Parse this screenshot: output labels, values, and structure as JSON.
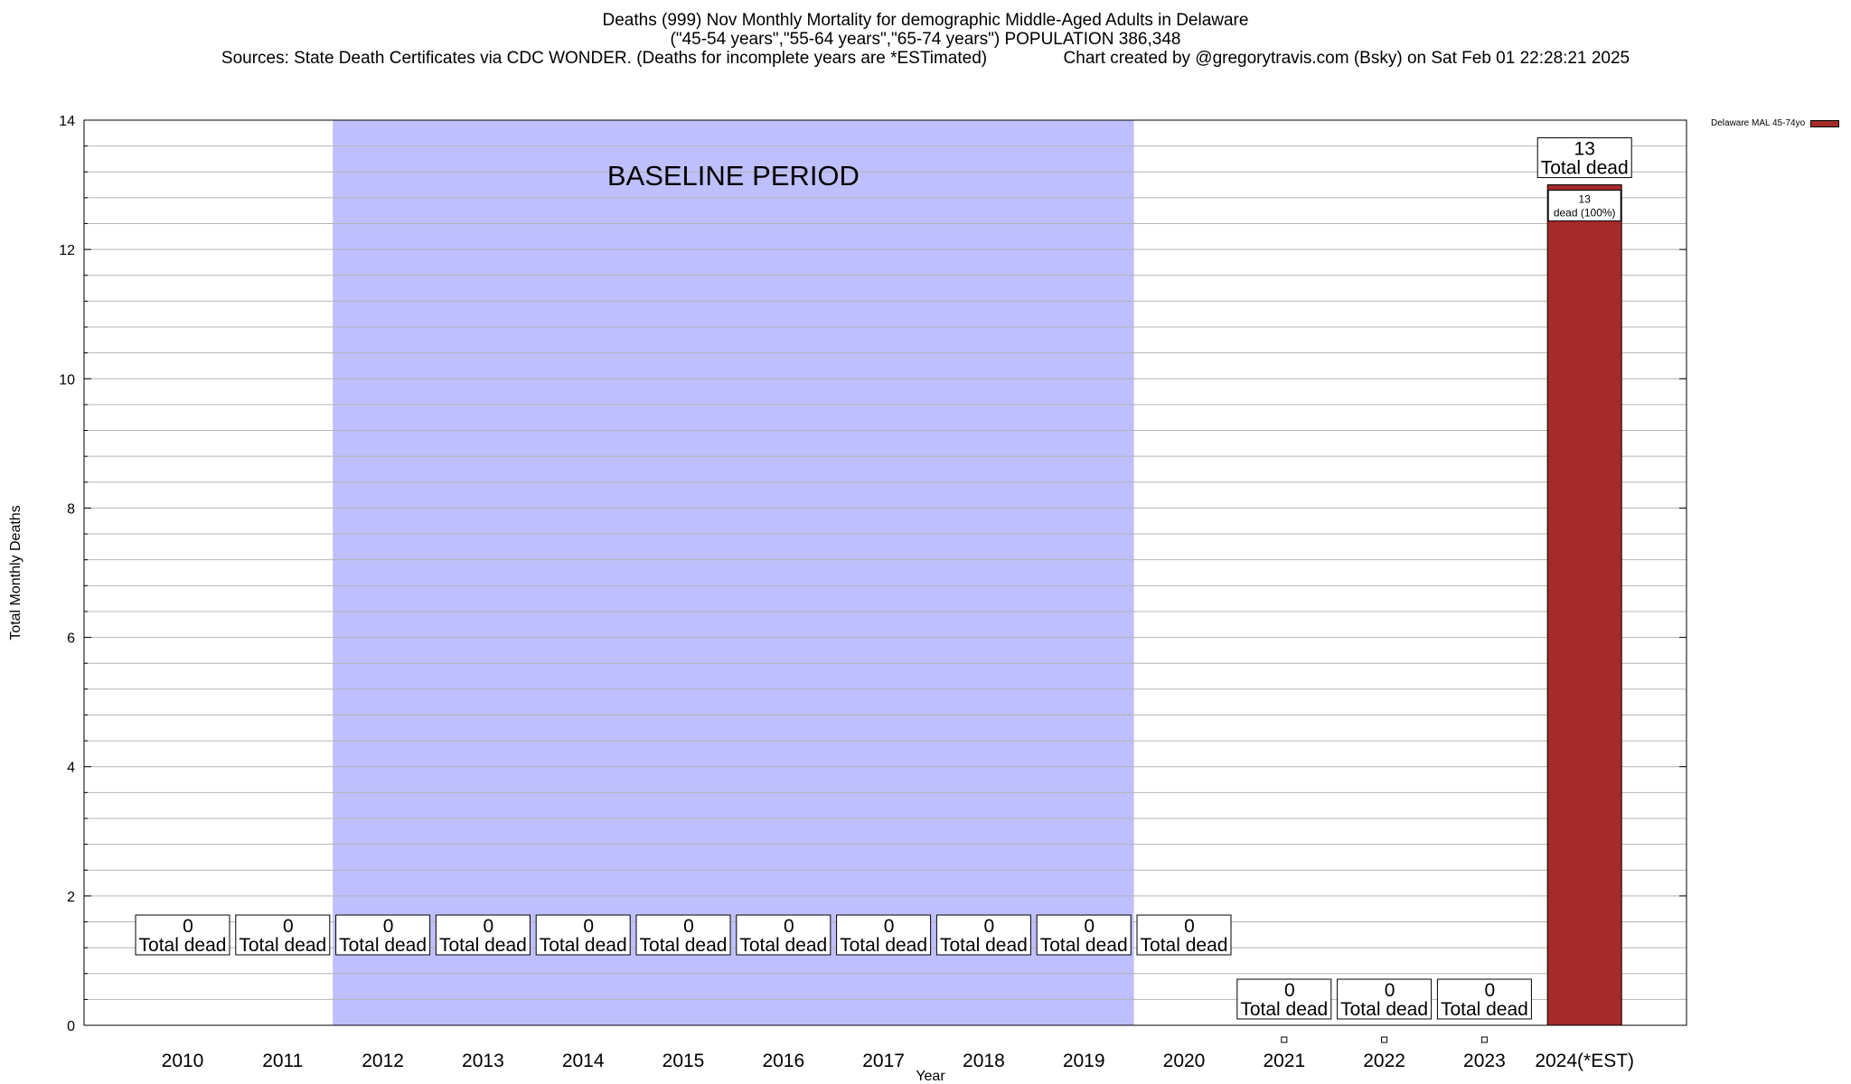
{
  "titles": {
    "line1": "Deaths (999) Nov Monthly Mortality for demographic Middle-Aged Adults in Delaware",
    "line2": "(\"45-54 years\",\"55-64 years\",\"65-74 years\") POPULATION 386,348",
    "line3": "Sources: State Death Certificates via CDC WONDER. (Deaths for incomplete years are *ESTimated)                Chart created by @gregorytravis.com (Bsky) on Sat Feb 01 22:28:21 2025"
  },
  "colors": {
    "bar": "#a52a2a",
    "baseline_shade": "#bfbffe",
    "grid": "#b4b4b4"
  },
  "chart_data": {
    "type": "bar",
    "xlabel": "Year",
    "ylabel": "Total Monthly Deaths",
    "ylim": [
      0,
      14
    ],
    "yticks": [
      0,
      2,
      4,
      6,
      8,
      10,
      12,
      14
    ],
    "grid": true,
    "legend_position": "top-right",
    "categories": [
      "2010",
      "2011",
      "2012",
      "2013",
      "2014",
      "2015",
      "2016",
      "2017",
      "2018",
      "2019",
      "2020",
      "2021",
      "2022",
      "2023",
      "2024(*EST)"
    ],
    "series": [
      {
        "name": "Delaware MAL 45-74yo",
        "values": [
          0,
          0,
          0,
          0,
          0,
          0,
          0,
          0,
          0,
          0,
          0,
          0,
          0,
          0,
          13
        ]
      }
    ],
    "total_label_suffix": "Total dead",
    "inner_label": {
      "value": "13",
      "text": "dead (100%)"
    },
    "baseline_period": {
      "label": "BASELINE PERIOD",
      "from": "2012",
      "to": "2019"
    }
  }
}
